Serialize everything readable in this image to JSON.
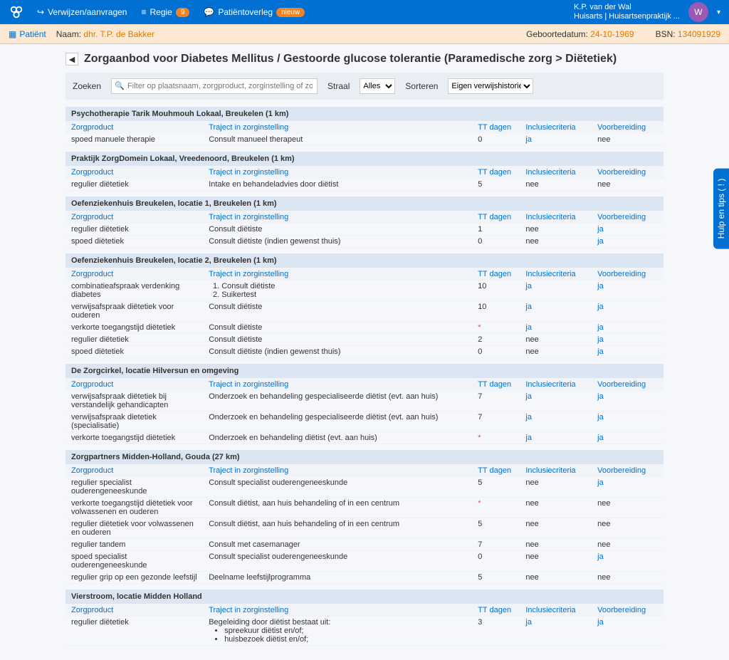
{
  "topbar": {
    "nav": {
      "verwijzen": "Verwijzen/aanvragen",
      "regie": "Regie",
      "regie_badge": "9",
      "overleg": "Patiëntoverleg",
      "nieuw_badge": "nieuw"
    },
    "user": {
      "name": "K.P. van der Wal",
      "subtitle": "Huisarts | Huisartsenpraktijk ...",
      "initial": "W"
    }
  },
  "patientbar": {
    "patient_label": "Patiënt",
    "naam_label": "Naam:",
    "naam": "dhr. T.P. de Bakker",
    "geb_label": "Geboortedatum:",
    "geb": "24-10-1969",
    "bsn_label": "BSN:",
    "bsn": "134091929"
  },
  "page": {
    "title": "Zorgaanbod voor Diabetes Mellitus / Gestoorde glucose tolerantie (Paramedische zorg > Diëtetiek)"
  },
  "filter": {
    "zoeken": "Zoeken",
    "placeholder": "Filter op plaatsnaam, zorgproduct, zorginstelling of zorgproducttype",
    "straal": "Straal",
    "straal_value": "Alles",
    "sorteren": "Sorteren",
    "sorteren_value": "Eigen verwijshistorie"
  },
  "columns": {
    "zorgproduct": "Zorgproduct",
    "traject": "Traject in zorginstelling",
    "tt": "TT dagen",
    "inclusie": "Inclusiecriteria",
    "voorbereiding": "Voorbereiding"
  },
  "vals": {
    "ja": "ja",
    "nee": "nee",
    "star": "*"
  },
  "groups": [
    {
      "title": "Psychotherapie Tarik Mouhmouh Lokaal, Breukelen (1 km)",
      "rows": [
        {
          "product": "spoed manuele therapie",
          "traject": "Consult manueel therapeut",
          "tt": "0",
          "incl": "ja",
          "voor": "nee"
        }
      ]
    },
    {
      "title": "Praktijk ZorgDomein Lokaal, Vreedenoord, Breukelen (1 km)",
      "rows": [
        {
          "product": "regulier diëtetiek",
          "traject": "Intake en behandeladvies door diëtist",
          "tt": "5",
          "incl": "nee",
          "voor": "nee"
        }
      ]
    },
    {
      "title": "Oefenziekenhuis Breukelen, locatie 1, Breukelen (1 km)",
      "rows": [
        {
          "product": "regulier diëtetiek",
          "traject": "Consult diëtiste",
          "tt": "1",
          "incl": "nee",
          "voor": "ja"
        },
        {
          "product": "spoed diëtetiek",
          "traject": "Consult diëtiste (indien gewenst thuis)",
          "tt": "0",
          "incl": "nee",
          "voor": "ja"
        }
      ]
    },
    {
      "title": "Oefenziekenhuis Breukelen, locatie 2, Breukelen (1 km)",
      "rows": [
        {
          "product": "combinatieafspraak verdenking diabetes",
          "traject_list": [
            "Consult diëtiste",
            "Suikertest"
          ],
          "tt": "10",
          "incl": "ja",
          "voor": "ja"
        },
        {
          "product": "verwijsafspraak diëtetiek voor ouderen",
          "traject": "Consult diëtiste",
          "tt": "10",
          "incl": "ja",
          "voor": "ja"
        },
        {
          "product": "verkorte toegangstijd diëtetiek",
          "traject": "Consult diëtiste",
          "tt": "*",
          "incl": "ja",
          "voor": "ja"
        },
        {
          "product": "regulier diëtetiek",
          "traject": "Consult diëtiste",
          "tt": "2",
          "incl": "nee",
          "voor": "ja"
        },
        {
          "product": "spoed diëtetiek",
          "traject": "Consult diëtiste (indien gewenst thuis)",
          "tt": "0",
          "incl": "nee",
          "voor": "ja"
        }
      ]
    },
    {
      "title": "De Zorgcirkel, locatie Hilversun en omgeving",
      "rows": [
        {
          "product": "verwijsafspraak diëtetiek bij verstandelijk gehandicapten",
          "traject": "Onderzoek en behandeling gespecialiseerde diëtist (evt. aan huis)",
          "tt": "7",
          "incl": "ja",
          "voor": "ja"
        },
        {
          "product": "verwijsafspraak dietetiek (specialisatie)",
          "traject": "Onderzoek en behandeling gespecialiseerde diëtist (evt. aan huis)",
          "tt": "7",
          "incl": "ja",
          "voor": "ja"
        },
        {
          "product": "verkorte toegangstijd diëtetiek",
          "traject": "Onderzoek en behandeling diëtist (evt. aan huis)",
          "tt": "*",
          "incl": "ja",
          "voor": "ja"
        }
      ]
    },
    {
      "title": "Zorgpartners Midden-Holland, Gouda (27 km)",
      "rows": [
        {
          "product": "regulier specialist ouderengeneeskunde",
          "traject": "Consult specialist ouderengeneeskunde",
          "tt": "5",
          "incl": "nee",
          "voor": "ja"
        },
        {
          "product": "verkorte toegangstijd diëtetiek voor volwassenen en ouderen",
          "traject": "Consult diëtist, aan huis behandeling of in een centrum",
          "tt": "*",
          "incl": "nee",
          "voor": "nee"
        },
        {
          "product": "regulier diëtetiek voor volwassenen en ouderen",
          "traject": "Consult diëtist, aan huis behandeling of in een centrum",
          "tt": "5",
          "incl": "nee",
          "voor": "nee"
        },
        {
          "product": "regulier tandem",
          "traject": "Consult met casemanager",
          "tt": "7",
          "incl": "nee",
          "voor": "nee"
        },
        {
          "product": "spoed specialist ouderengeneeskunde",
          "traject": "Consult specialist ouderengeneeskunde",
          "tt": "0",
          "incl": "nee",
          "voor": "ja"
        },
        {
          "product": "regulier grip op een gezonde leefstijl",
          "traject": "Deelname leefstijlprogramma",
          "tt": "5",
          "incl": "nee",
          "voor": "nee"
        }
      ]
    },
    {
      "title": "Vierstroom, locatie Midden Holland",
      "rows": [
        {
          "product": "regulier diëtetiek",
          "traject_text": "Begeleiding door diëtist bestaat uit:",
          "traject_bullets": [
            "spreekuur diëtist en/of;",
            "huisbezoek diëtist en/of;"
          ],
          "tt": "3",
          "incl": "ja",
          "voor": "ja"
        }
      ]
    }
  ],
  "help": "Hulp en tips ( ! )"
}
